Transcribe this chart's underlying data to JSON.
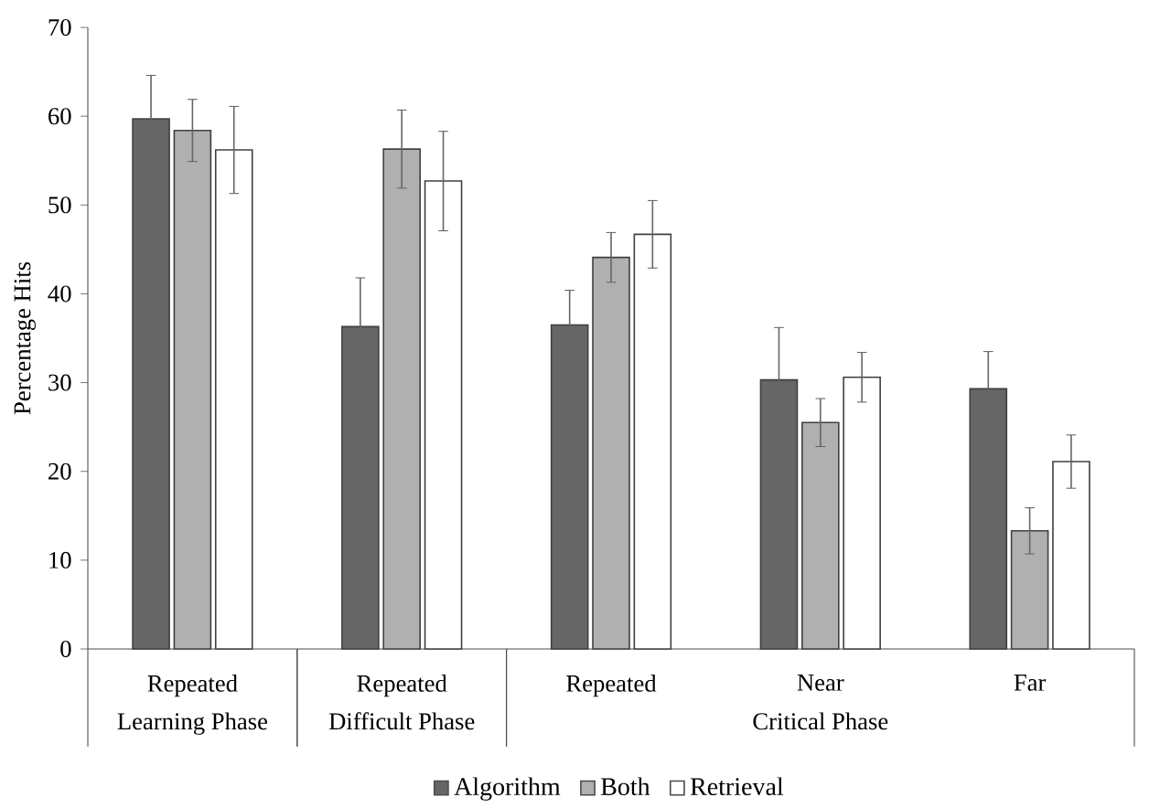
{
  "chart_data": {
    "type": "bar",
    "ylabel": "Percentage Hits",
    "categories": [
      "Repeated",
      "Repeated",
      "Repeated",
      "Near",
      "Far"
    ],
    "annotations": [
      "Learning Phase",
      "Difficult Phase",
      "Critical Phase"
    ],
    "series": [
      {
        "name": "Algorithm",
        "color": "#666666",
        "values": [
          59.7,
          36.3,
          36.5,
          30.3,
          29.3
        ],
        "errors": [
          4.9,
          5.5,
          3.9,
          5.9,
          4.2
        ]
      },
      {
        "name": "Both",
        "color": "#b0b0b0",
        "values": [
          58.4,
          56.3,
          44.1,
          25.5,
          13.3
        ],
        "errors": [
          3.5,
          4.4,
          2.8,
          2.7,
          2.6
        ]
      },
      {
        "name": "Retrieval",
        "color": "#ffffff",
        "values": [
          56.2,
          52.7,
          46.7,
          30.6,
          21.1
        ],
        "errors": [
          4.9,
          5.6,
          3.8,
          2.8,
          3.0
        ]
      }
    ],
    "ylim": [
      0,
      70
    ],
    "yticks": [
      0,
      10,
      20,
      30,
      40,
      50,
      60,
      70
    ],
    "grid": false,
    "legend": "bottom"
  }
}
